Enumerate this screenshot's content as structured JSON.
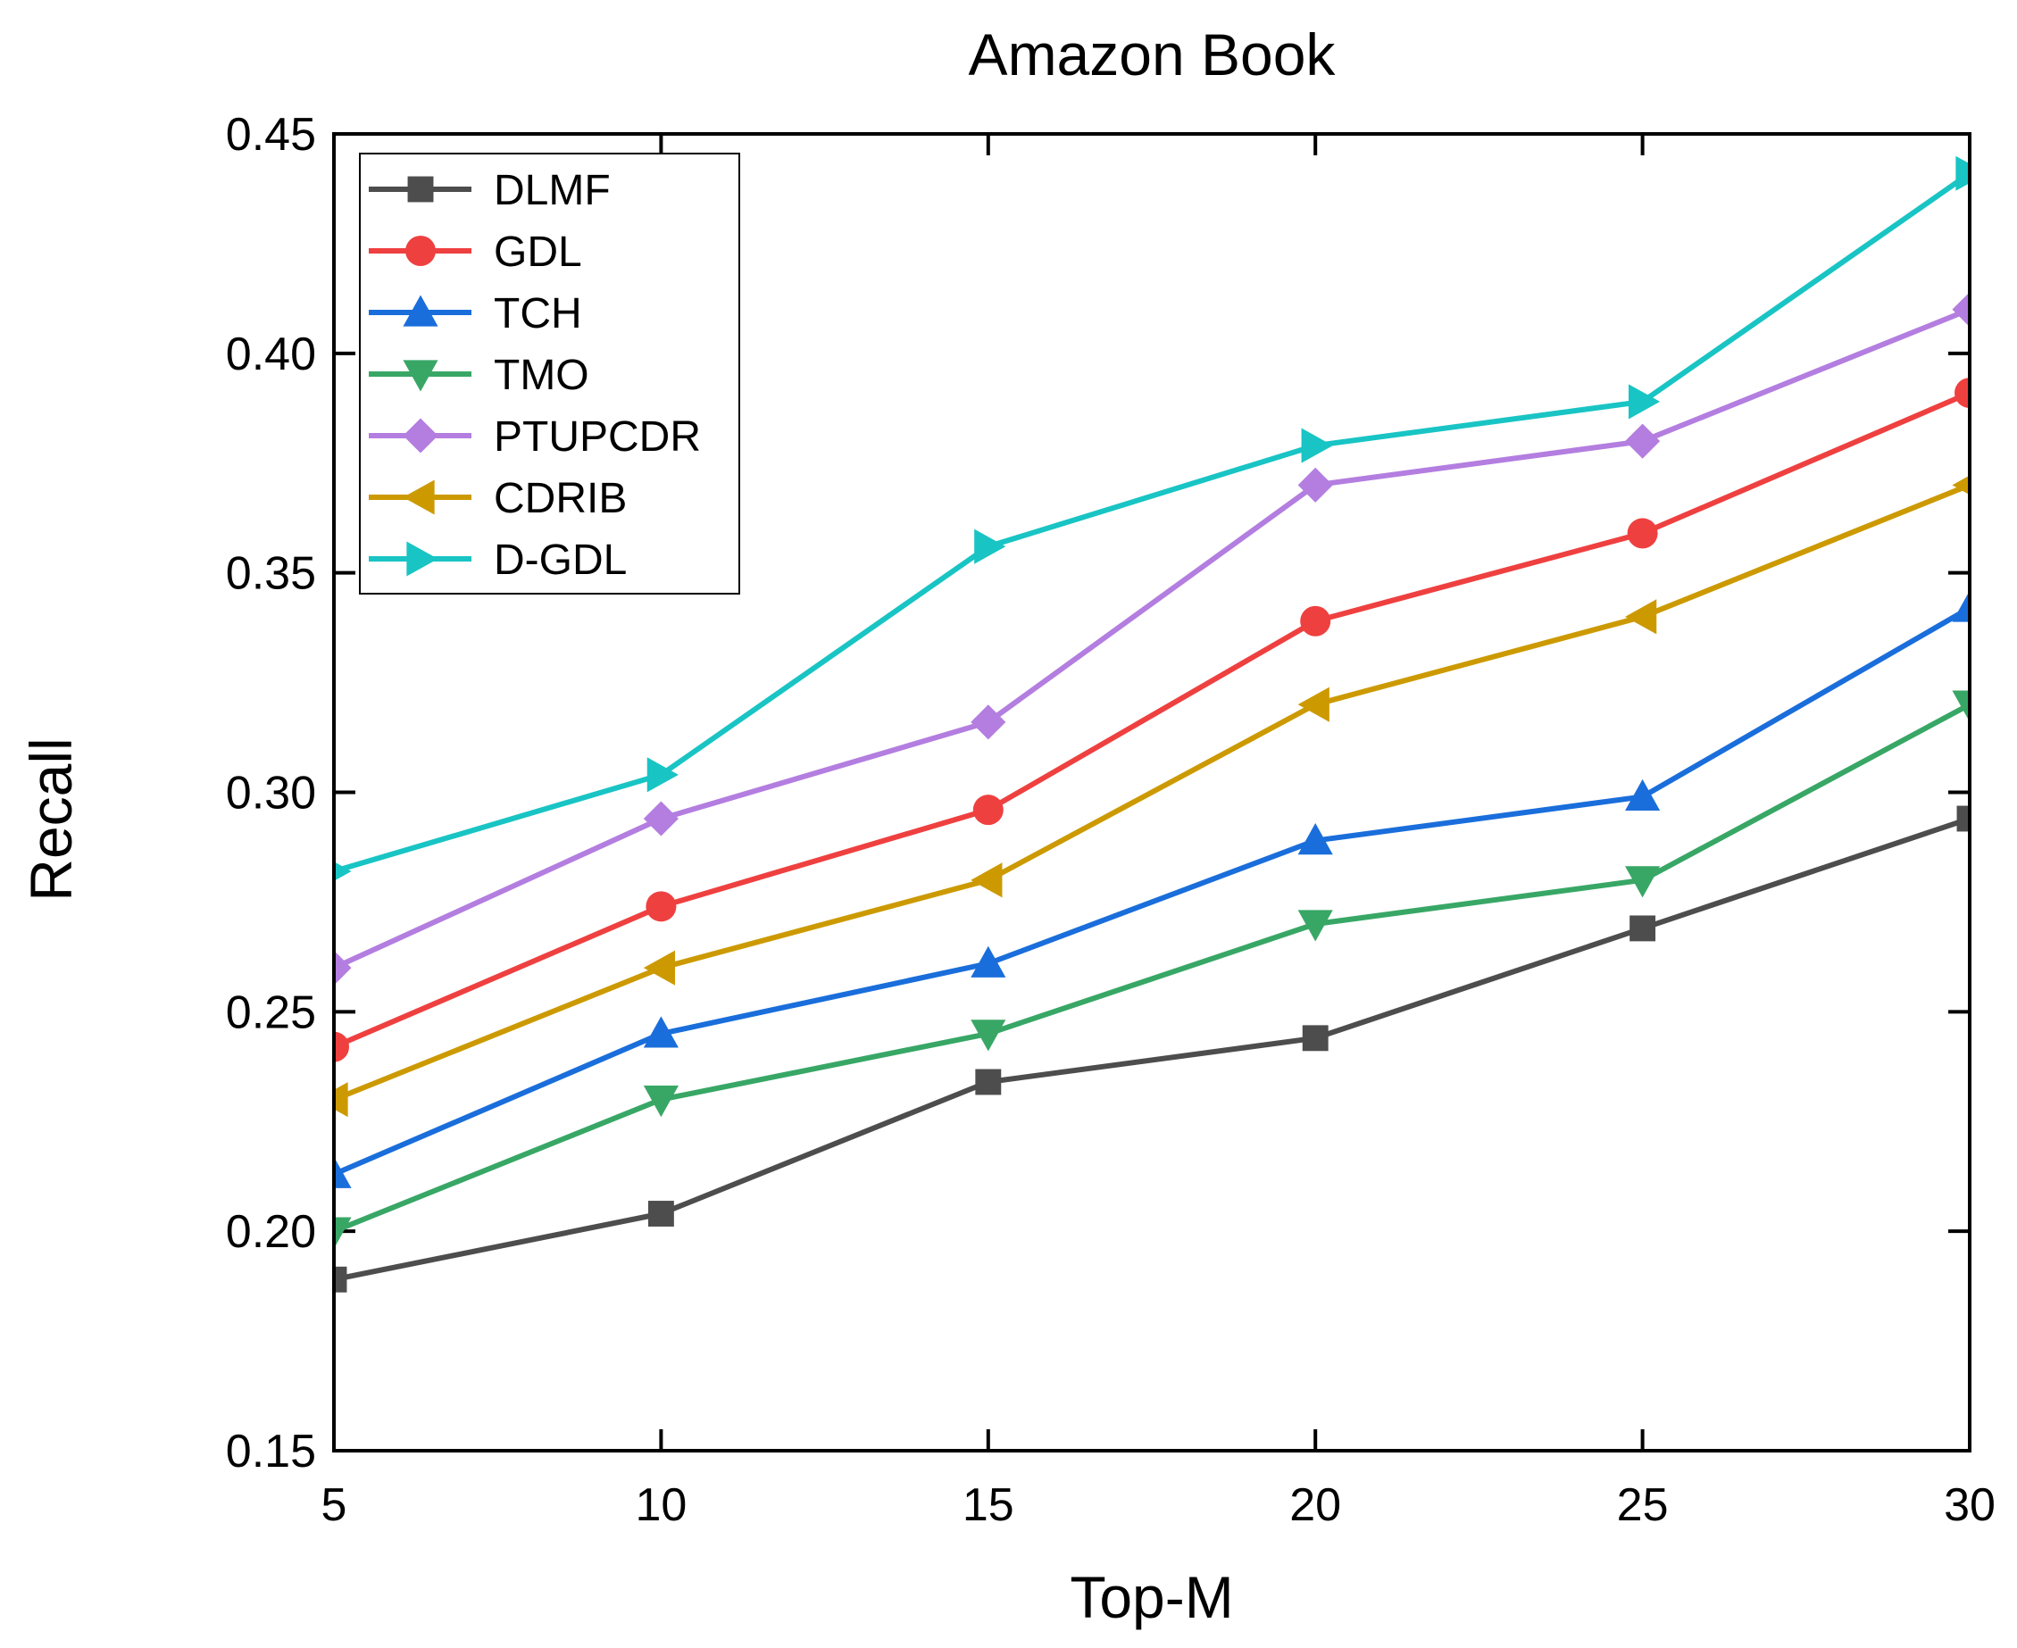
{
  "chart_data": {
    "type": "line",
    "title": "Amazon Book",
    "xlabel": "Top-M",
    "ylabel": "Recall",
    "x": [
      5,
      10,
      15,
      20,
      25,
      30
    ],
    "xlim": [
      5,
      30
    ],
    "ylim": [
      0.15,
      0.45
    ],
    "xticks": [
      "5",
      "10",
      "15",
      "20",
      "25",
      "30"
    ],
    "yticks": [
      "0.15",
      "0.20",
      "0.25",
      "0.30",
      "0.35",
      "0.40",
      "0.45"
    ],
    "grid": false,
    "legend_position": "top-left",
    "series": [
      {
        "name": "DLMF",
        "color": "#4d4d4d",
        "marker": "square",
        "values": [
          0.189,
          0.204,
          0.234,
          0.244,
          0.269,
          0.294
        ]
      },
      {
        "name": "GDL",
        "color": "#ef4040",
        "marker": "circle",
        "values": [
          0.242,
          0.274,
          0.296,
          0.339,
          0.359,
          0.391
        ]
      },
      {
        "name": "TCH",
        "color": "#1a6edb",
        "marker": "triangle-up",
        "values": [
          0.213,
          0.245,
          0.261,
          0.289,
          0.299,
          0.342
        ]
      },
      {
        "name": "TMO",
        "color": "#38a766",
        "marker": "triangle-down",
        "values": [
          0.2,
          0.23,
          0.245,
          0.27,
          0.28,
          0.32
        ]
      },
      {
        "name": "PTUPCDR",
        "color": "#b37ee0",
        "marker": "diamond",
        "values": [
          0.26,
          0.294,
          0.316,
          0.37,
          0.38,
          0.41
        ]
      },
      {
        "name": "CDRIB",
        "color": "#cc9a00",
        "marker": "triangle-left",
        "values": [
          0.23,
          0.26,
          0.28,
          0.32,
          0.34,
          0.37
        ]
      },
      {
        "name": "D-GDL",
        "color": "#19c4c4",
        "marker": "triangle-right",
        "values": [
          0.282,
          0.304,
          0.356,
          0.379,
          0.389,
          0.441
        ]
      }
    ]
  }
}
